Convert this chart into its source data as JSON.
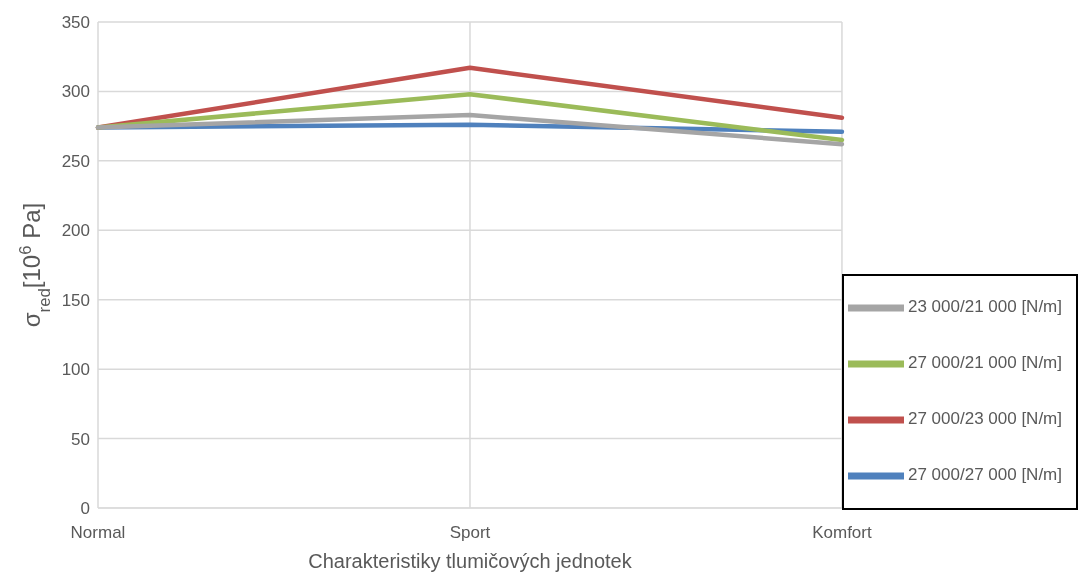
{
  "chart_data": {
    "type": "line",
    "xlabel": "Charakteristiky tlumičových jednotek",
    "ylabel": "σ$_{red}$[10$^{6}$ Pa]",
    "categories": [
      "Normal",
      "Sport",
      "Komfort"
    ],
    "series": [
      {
        "name": "27 000/27 000 [N/m]",
        "color": "#4f81bd",
        "values": [
          274,
          276,
          271
        ]
      },
      {
        "name": "27 000/23 000 [N/m]",
        "color": "#c0504d",
        "values": [
          274,
          317,
          281
        ]
      },
      {
        "name": "27 000/21 000 [N/m]",
        "color": "#9bbb59",
        "values": [
          274,
          298,
          265
        ]
      },
      {
        "name": "23 000/21 000 [N/m]",
        "color": "#a5a5a5",
        "values": [
          274,
          283,
          262
        ]
      }
    ],
    "ylim": [
      0,
      350
    ],
    "yticks": [
      0,
      50,
      100,
      150,
      200,
      250,
      300,
      350
    ],
    "grid": true,
    "legend": "bottom right",
    "marker": "none",
    "line_style": "solid"
  }
}
